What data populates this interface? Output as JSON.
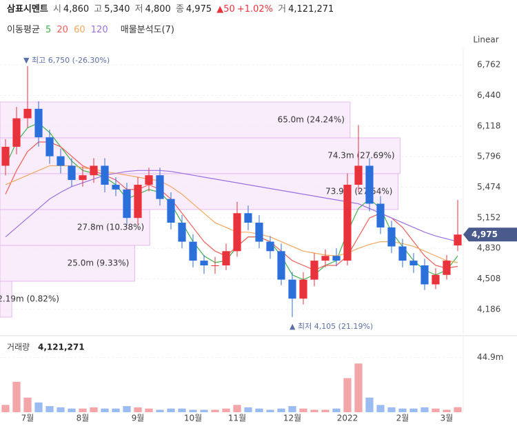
{
  "header": {
    "name": "삼표시멘트",
    "open_label": "시",
    "open": "4,860",
    "high_label": "고",
    "high": "5,340",
    "low_label": "저",
    "low": "4,800",
    "close_label": "종",
    "close": "4,975",
    "change": "▲50",
    "change_pct": "+1.02%",
    "volume_label": "거",
    "volume": "4,121,271"
  },
  "indicators": {
    "title": "이동평균",
    "periods": [
      "5",
      "20",
      "60",
      "120"
    ],
    "profile_title": "매물분석도(7)",
    "scale": "Linear"
  },
  "chart_data": [
    {
      "type": "candlestick",
      "categories": [
        null,
        null,
        "7월",
        null,
        null,
        null,
        null,
        "8월",
        null,
        null,
        null,
        null,
        "9월",
        null,
        null,
        null,
        null,
        "10월",
        null,
        null,
        null,
        "11월",
        null,
        null,
        null,
        null,
        "12월",
        null,
        null,
        null,
        null,
        "2022",
        null,
        null,
        null,
        null,
        "2월",
        null,
        null,
        null,
        "3월",
        null
      ],
      "open": [
        5700,
        5900,
        6200,
        6300,
        6000,
        5800,
        5700,
        5550,
        5600,
        5700,
        5500,
        5450,
        5150,
        5500,
        5600,
        5350,
        5100,
        4900,
        4700,
        4650,
        4650,
        4800,
        5200,
        5100,
        4900,
        4800,
        4500,
        4300,
        4500,
        4700,
        4750,
        4700,
        5500,
        5700,
        5300,
        5050,
        4850,
        4700,
        4650,
        4450,
        4550,
        4860
      ],
      "high": [
        5980,
        6320,
        6750,
        6380,
        6080,
        5880,
        5780,
        5690,
        5780,
        5780,
        5580,
        5520,
        5580,
        5680,
        5680,
        5420,
        5180,
        4980,
        4760,
        4740,
        4880,
        5320,
        5280,
        5180,
        4960,
        4880,
        4580,
        4580,
        4780,
        4820,
        4830,
        5620,
        6130,
        5780,
        5380,
        5120,
        4930,
        4780,
        4720,
        4620,
        4760,
        5340
      ],
      "low": [
        5600,
        5820,
        6100,
        5900,
        5720,
        5620,
        5480,
        5480,
        5520,
        5420,
        5380,
        5080,
        5080,
        5430,
        5280,
        5030,
        4830,
        4630,
        4560,
        4560,
        4600,
        4740,
        5020,
        4830,
        4720,
        4440,
        4105,
        4240,
        4430,
        4630,
        4640,
        4650,
        5420,
        5220,
        4980,
        4780,
        4630,
        4570,
        4390,
        4400,
        4500,
        4800
      ],
      "close": [
        5900,
        6200,
        6300,
        6000,
        5800,
        5700,
        5550,
        5600,
        5700,
        5500,
        5450,
        5150,
        5500,
        5600,
        5350,
        5100,
        4900,
        4700,
        4650,
        4650,
        4800,
        5200,
        5100,
        4900,
        4800,
        4500,
        4300,
        4500,
        4700,
        4750,
        4700,
        5500,
        5700,
        5300,
        5050,
        4850,
        4700,
        4650,
        4450,
        4550,
        4700,
        4975
      ],
      "up_color": "#e8323c",
      "down_color": "#2b6fdb",
      "series": [
        {
          "name": "5",
          "color": "#3cb44b",
          "values": [
            5700,
            5950,
            6100,
            6150,
            6050,
            5900,
            5750,
            5650,
            5620,
            5580,
            5500,
            5350,
            5400,
            5450,
            5420,
            5300,
            5100,
            4900,
            4750,
            4680,
            4700,
            4850,
            4950,
            4950,
            4900,
            4750,
            4550,
            4500,
            4550,
            4650,
            4700,
            5000,
            5250,
            5350,
            5250,
            5000,
            4850,
            4700,
            4600,
            4550,
            4600,
            4750
          ]
        },
        {
          "name": "20",
          "color": "#f25c54",
          "values": [
            5400,
            5650,
            5850,
            5950,
            5950,
            5900,
            5800,
            5700,
            5650,
            5600,
            5550,
            5450,
            5450,
            5500,
            5450,
            5350,
            5200,
            5050,
            4900,
            4800,
            4750,
            4850,
            4950,
            4950,
            4900,
            4800,
            4700,
            4650,
            4600,
            4650,
            4650,
            4750,
            4950,
            5150,
            5200,
            5150,
            5050,
            4900,
            4750,
            4650,
            4620,
            4640
          ]
        },
        {
          "name": "60",
          "color": "#f5a65b",
          "values": [
            5500,
            5550,
            5600,
            5650,
            5700,
            5700,
            5700,
            5680,
            5660,
            5640,
            5620,
            5600,
            5580,
            5560,
            5540,
            5480,
            5400,
            5300,
            5200,
            5100,
            5050,
            5000,
            5000,
            4980,
            4950,
            4900,
            4850,
            4800,
            4780,
            4760,
            4750,
            4780,
            4830,
            4870,
            4900,
            4900,
            4880,
            4850,
            4800,
            4750,
            4700,
            4680
          ]
        },
        {
          "name": "120",
          "color": "#9b6fe0",
          "values": [
            4950,
            5050,
            5150,
            5250,
            5350,
            5420,
            5480,
            5520,
            5560,
            5600,
            5620,
            5640,
            5650,
            5650,
            5650,
            5640,
            5620,
            5600,
            5580,
            5560,
            5540,
            5520,
            5500,
            5480,
            5460,
            5440,
            5420,
            5400,
            5380,
            5360,
            5340,
            5320,
            5300,
            5250,
            5200,
            5150,
            5100,
            5050,
            5000,
            4960,
            4930,
            4900
          ]
        }
      ],
      "ylim": [
        3960,
        6880
      ],
      "yticks": [
        {
          "value": 6762,
          "label": "6,762"
        },
        {
          "value": 6440,
          "label": "6,440"
        },
        {
          "value": 6118,
          "label": "6,118"
        },
        {
          "value": 5796,
          "label": "5,796"
        },
        {
          "value": 5474,
          "label": "5,474"
        },
        {
          "value": 5152,
          "label": "5,152"
        },
        {
          "value": 4830,
          "label": "4,830"
        },
        {
          "value": 4508,
          "label": "4,508"
        },
        {
          "value": 4186,
          "label": "4,186"
        }
      ],
      "last_price": {
        "value": 4975,
        "label": "4,975"
      },
      "max_annotation": "▼ 최고 6,750 (-26.30%)",
      "min_annotation": "▲ 최저 4,105 (21.19%)",
      "grid": true
    },
    {
      "type": "histogram",
      "orientation": "horizontal",
      "bins": [
        4105,
        4483,
        4861,
        5239,
        5617,
        5994,
        6372
      ],
      "values": [
        2.19,
        25.0,
        27.8,
        73.9,
        74.3,
        65.0
      ],
      "value_labels": [
        "2.19m (0.82%)",
        "25.0m (9.33%)",
        "27.8m (10.38%)",
        "73.9m (27.54%)",
        "74.3m (27.69%)",
        "65.0m (24.24%)"
      ],
      "xlim": [
        0,
        86
      ],
      "color": "#f6e6fb"
    },
    {
      "type": "bar",
      "title": "거래량",
      "last_value": "4,121,271",
      "values": [
        6,
        25,
        12,
        8,
        5,
        4,
        3,
        3,
        4,
        3,
        3,
        5,
        4,
        3,
        2,
        3,
        3,
        2,
        2,
        2,
        3,
        6,
        4,
        3,
        2,
        3,
        5,
        3,
        2,
        2,
        3,
        28,
        40,
        12,
        6,
        4,
        3,
        3,
        4,
        3,
        2,
        4.12
      ],
      "ylim": [
        0,
        60
      ],
      "yticks": [
        {
          "value": 44.9,
          "label": "44.9m"
        }
      ]
    }
  ]
}
